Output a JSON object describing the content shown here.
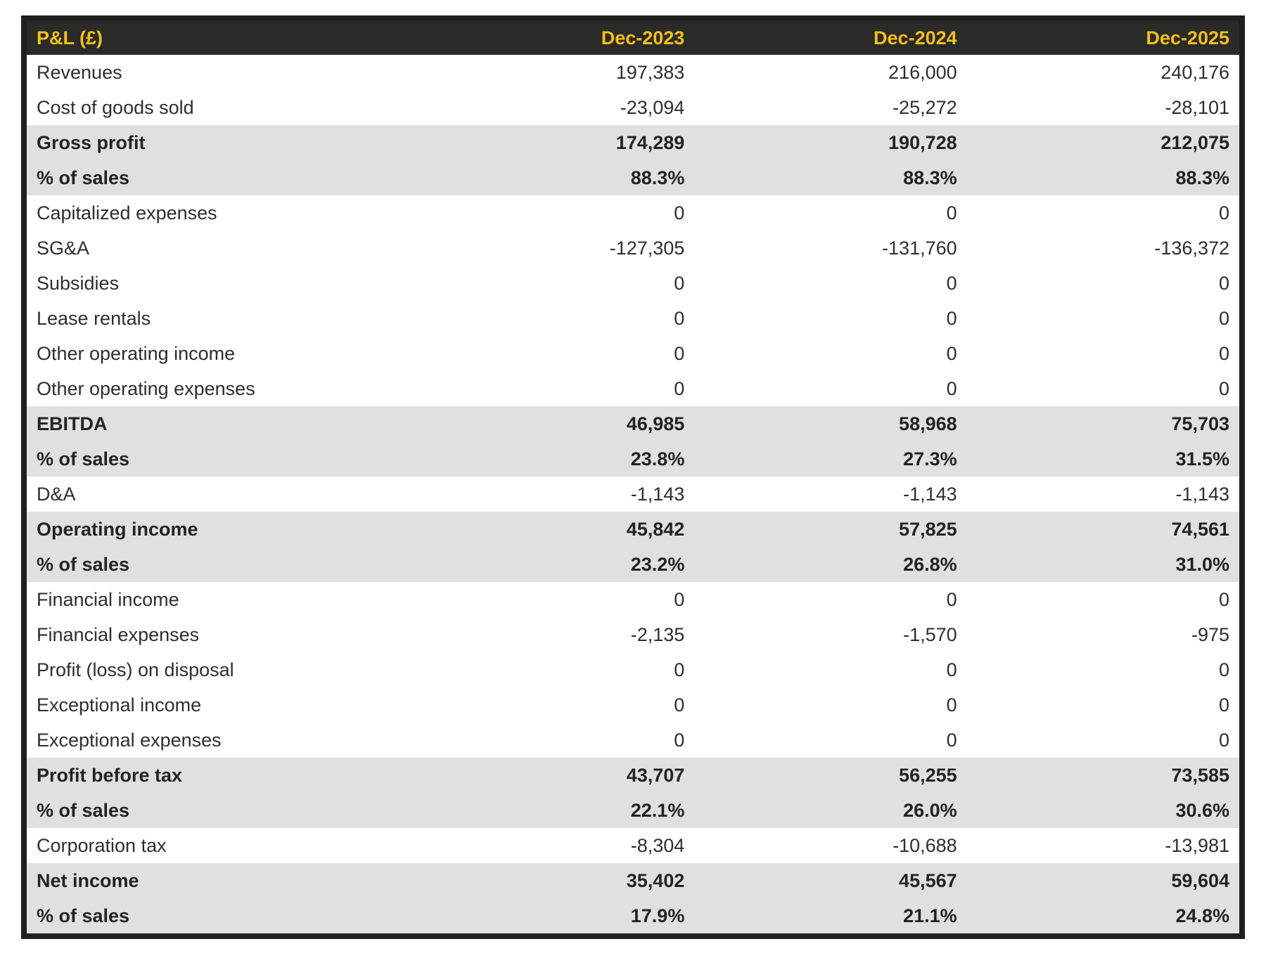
{
  "chart_data": {
    "type": "table",
    "title": "P&L (£)",
    "columns": [
      "Dec-2023",
      "Dec-2024",
      "Dec-2025"
    ],
    "rows": [
      {
        "label": "Revenues",
        "values": [
          "197,383",
          "216,000",
          "240,176"
        ],
        "emphasis": false
      },
      {
        "label": "Cost of goods sold",
        "values": [
          "-23,094",
          "-25,272",
          "-28,101"
        ],
        "emphasis": false
      },
      {
        "label": "Gross profit",
        "values": [
          "174,289",
          "190,728",
          "212,075"
        ],
        "emphasis": true
      },
      {
        "label": "% of sales",
        "values": [
          "88.3%",
          "88.3%",
          "88.3%"
        ],
        "emphasis": true
      },
      {
        "label": "Capitalized expenses",
        "values": [
          "0",
          "0",
          "0"
        ],
        "emphasis": false
      },
      {
        "label": "SG&A",
        "values": [
          "-127,305",
          "-131,760",
          "-136,372"
        ],
        "emphasis": false
      },
      {
        "label": "Subsidies",
        "values": [
          "0",
          "0",
          "0"
        ],
        "emphasis": false
      },
      {
        "label": "Lease rentals",
        "values": [
          "0",
          "0",
          "0"
        ],
        "emphasis": false
      },
      {
        "label": "Other operating income",
        "values": [
          "0",
          "0",
          "0"
        ],
        "emphasis": false
      },
      {
        "label": "Other operating expenses",
        "values": [
          "0",
          "0",
          "0"
        ],
        "emphasis": false
      },
      {
        "label": "EBITDA",
        "values": [
          "46,985",
          "58,968",
          "75,703"
        ],
        "emphasis": true
      },
      {
        "label": "% of sales",
        "values": [
          "23.8%",
          "27.3%",
          "31.5%"
        ],
        "emphasis": true
      },
      {
        "label": "D&A",
        "values": [
          "-1,143",
          "-1,143",
          "-1,143"
        ],
        "emphasis": false
      },
      {
        "label": "Operating income",
        "values": [
          "45,842",
          "57,825",
          "74,561"
        ],
        "emphasis": true
      },
      {
        "label": "% of sales",
        "values": [
          "23.2%",
          "26.8%",
          "31.0%"
        ],
        "emphasis": true
      },
      {
        "label": "Financial income",
        "values": [
          "0",
          "0",
          "0"
        ],
        "emphasis": false
      },
      {
        "label": "Financial expenses",
        "values": [
          "-2,135",
          "-1,570",
          "-975"
        ],
        "emphasis": false
      },
      {
        "label": "Profit (loss) on disposal",
        "values": [
          "0",
          "0",
          "0"
        ],
        "emphasis": false
      },
      {
        "label": "Exceptional income",
        "values": [
          "0",
          "0",
          "0"
        ],
        "emphasis": false
      },
      {
        "label": "Exceptional expenses",
        "values": [
          "0",
          "0",
          "0"
        ],
        "emphasis": false
      },
      {
        "label": "Profit before tax",
        "values": [
          "43,707",
          "56,255",
          "73,585"
        ],
        "emphasis": true
      },
      {
        "label": "% of sales",
        "values": [
          "22.1%",
          "26.0%",
          "30.6%"
        ],
        "emphasis": true
      },
      {
        "label": "Corporation tax",
        "values": [
          "-8,304",
          "-10,688",
          "-13,981"
        ],
        "emphasis": false
      },
      {
        "label": "Net income",
        "values": [
          "35,402",
          "45,567",
          "59,604"
        ],
        "emphasis": true
      },
      {
        "label": "% of sales",
        "values": [
          "17.9%",
          "21.1%",
          "24.8%"
        ],
        "emphasis": true
      }
    ],
    "layout_hints": {
      "header_position": "top",
      "value_alignment": "right",
      "grid": "off",
      "emphasis_style": "gray-band-bold"
    },
    "colors": {
      "header_bg": "#2a2a28",
      "header_text": "#f2c018",
      "band_bg": "#e0e0de",
      "row_bg": "#ffffff",
      "border": "#1f1f1f",
      "text": "#2e2e2e"
    }
  }
}
